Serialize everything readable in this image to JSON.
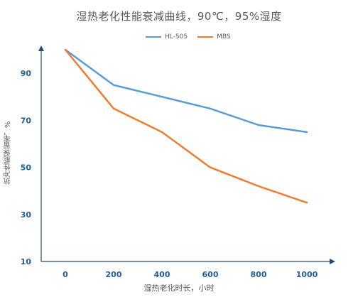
{
  "chart_data": {
    "type": "line",
    "title": "湿热老化性能衰减曲线，90℃，95%湿度",
    "xlabel": "湿热老化时长，小时",
    "ylabel": "抗冲性能保留率，%",
    "x": [
      0,
      200,
      400,
      600,
      800,
      1000
    ],
    "xlim": [
      -100,
      1100
    ],
    "ylim": [
      10,
      100
    ],
    "yticks": [
      10,
      30,
      50,
      70,
      90
    ],
    "grid": false,
    "legend_position": "top-center",
    "series": [
      {
        "name": "HL-505",
        "color": "#5B9BD5",
        "values": [
          100,
          85,
          80,
          75,
          68,
          65
        ]
      },
      {
        "name": "MBS",
        "color": "#ED7D31",
        "values": [
          100,
          75,
          65,
          50,
          42,
          35
        ]
      }
    ]
  }
}
